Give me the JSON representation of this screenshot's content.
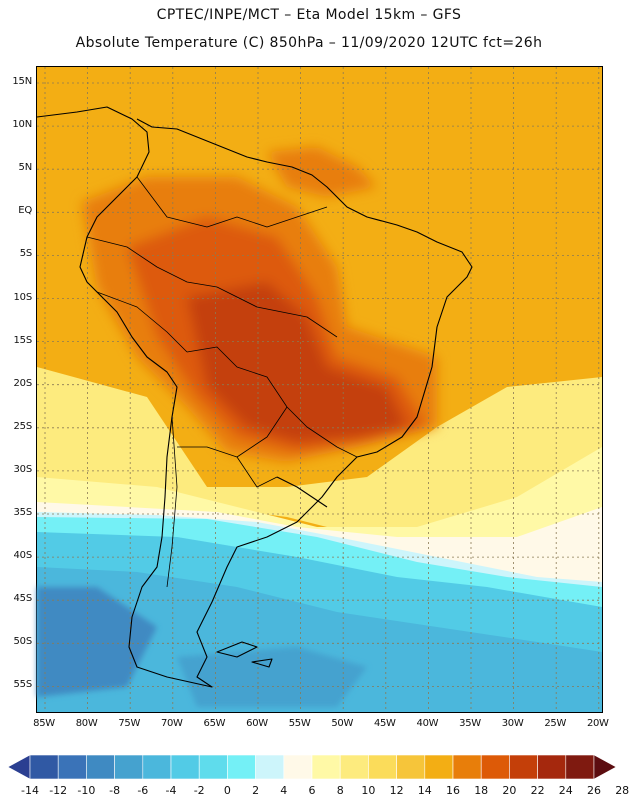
{
  "header": {
    "title_line1": "CPTEC/INPE/MCT –  Eta Model 15km – GFS",
    "title_line2": "Absolute Temperature (C) 850hPa – 11/09/2020 12UTC fct=26h"
  },
  "axes": {
    "lat_labels": [
      "15N",
      "10N",
      "5N",
      "EQ",
      "5S",
      "10S",
      "15S",
      "20S",
      "25S",
      "30S",
      "35S",
      "40S",
      "45S",
      "50S",
      "55S"
    ],
    "lon_labels": [
      "85W",
      "80W",
      "75W",
      "70W",
      "65W",
      "60W",
      "55W",
      "50W",
      "45W",
      "40W",
      "35W",
      "30W",
      "25W",
      "20W"
    ]
  },
  "colorbar": {
    "labels": [
      "-14",
      "-12",
      "-10",
      "-8",
      "-6",
      "-4",
      "-2",
      "0",
      "2",
      "4",
      "6",
      "8",
      "10",
      "12",
      "14",
      "16",
      "18",
      "20",
      "22",
      "24",
      "26",
      "28"
    ],
    "colors": [
      "#2b3f91",
      "#3059a4",
      "#3a73b8",
      "#3f8ac2",
      "#45a2cf",
      "#4bb7dc",
      "#52cbe6",
      "#5fdcec",
      "#74f0f6",
      "#cdf5fb",
      "#fff9e8",
      "#fff9a6",
      "#fdeb7e",
      "#fbdc5a",
      "#f6c53a",
      "#f3ae14",
      "#e87e0a",
      "#dd5a07",
      "#c43f09",
      "#a5280d",
      "#7f1a10",
      "#5c0d10"
    ]
  },
  "colors": {
    "cold": "#3f8ac2",
    "cool": "#4bb7dc",
    "mild": "#fff9a6",
    "warm": "#f3ae14",
    "hot": "#dd5a07",
    "hottest": "#c43f09"
  }
}
